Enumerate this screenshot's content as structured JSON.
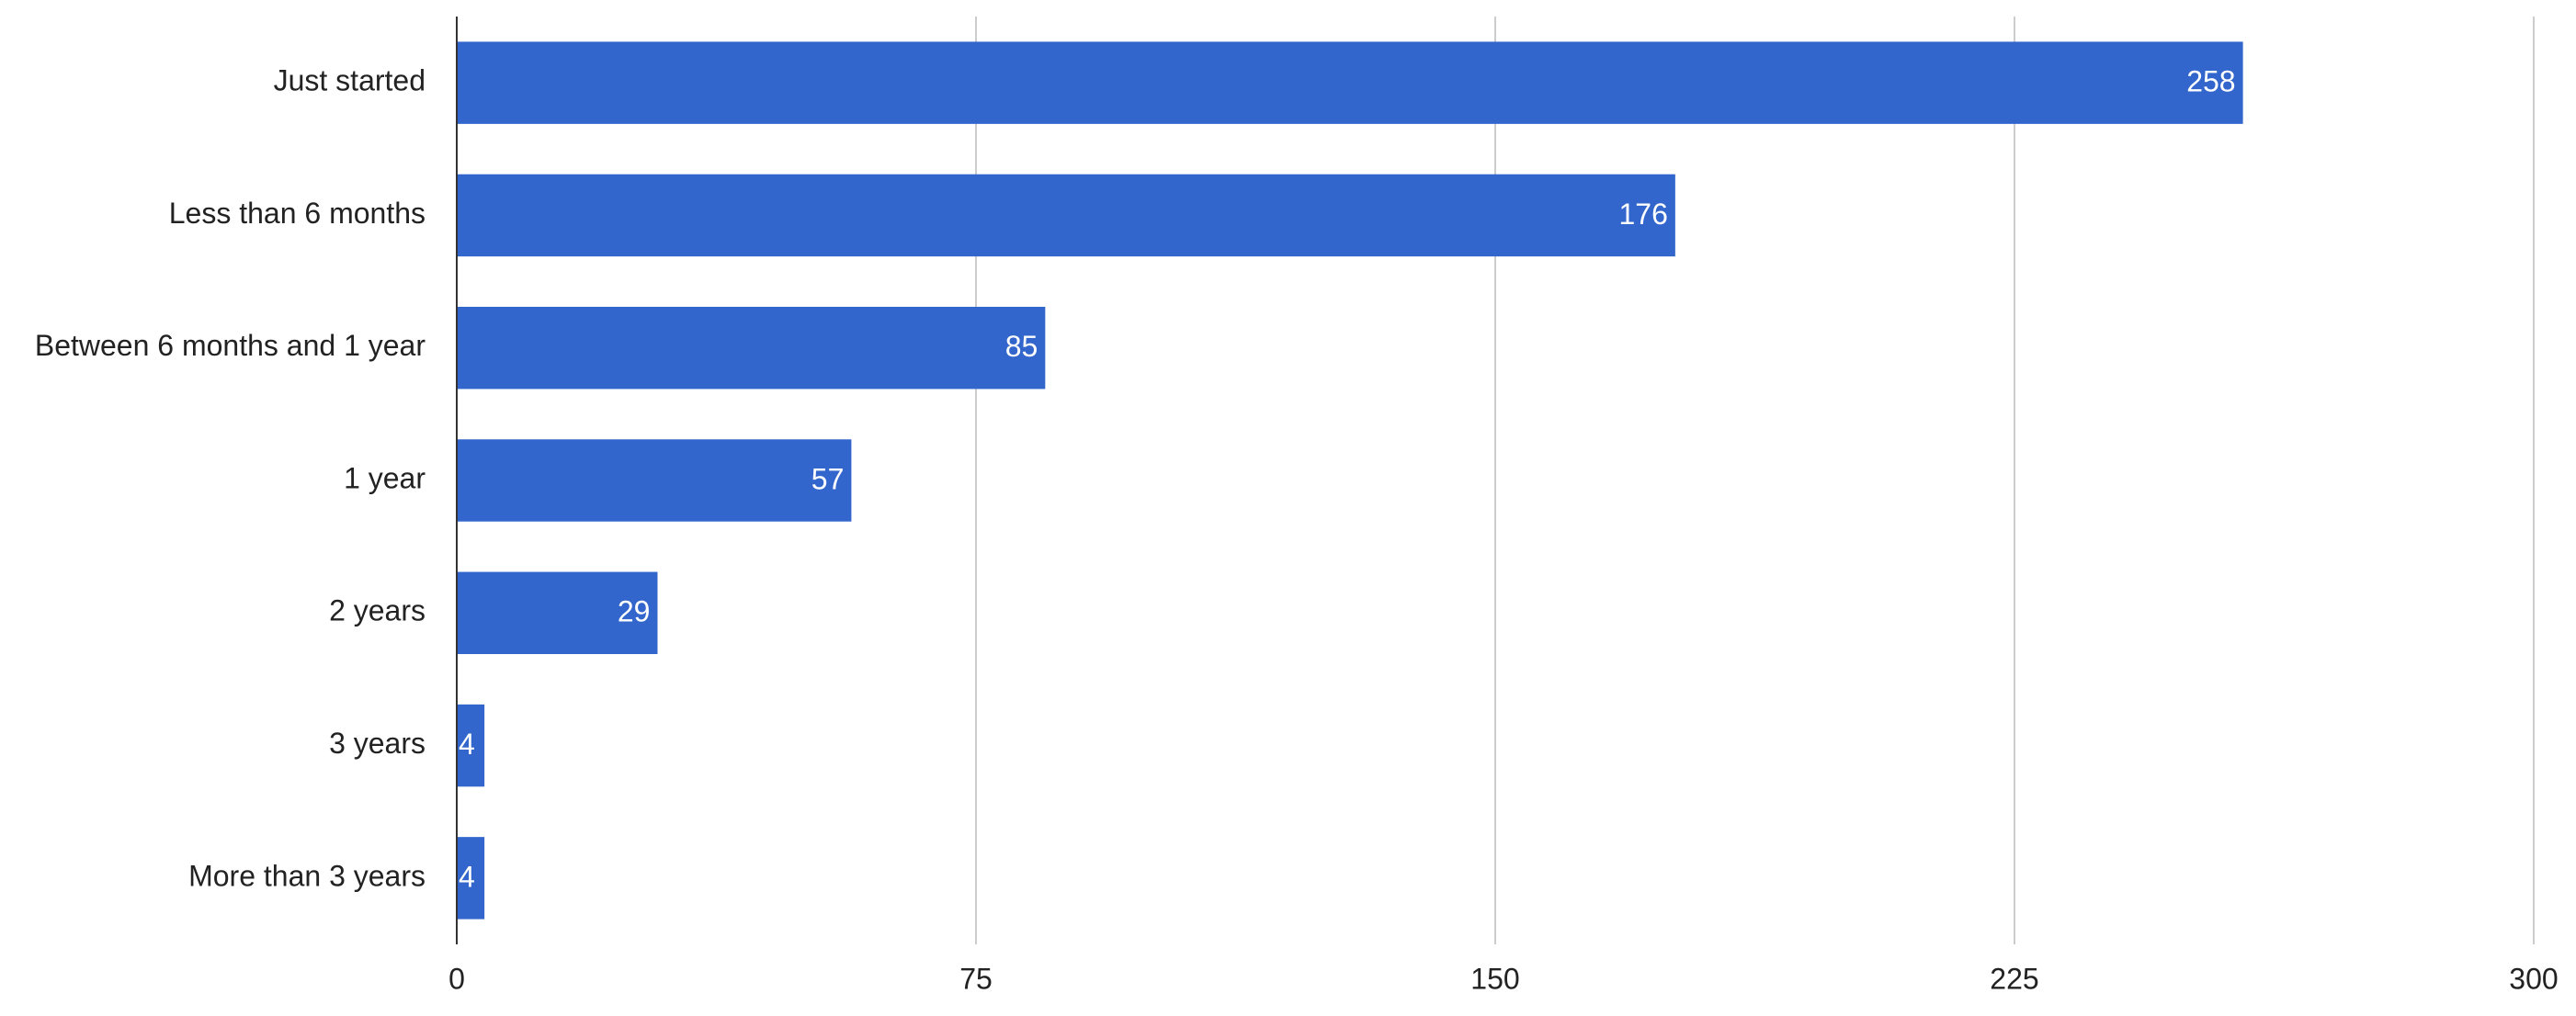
{
  "chart_data": {
    "type": "bar",
    "orientation": "horizontal",
    "categories": [
      "Just started",
      "Less than 6 months",
      "Between 6 months and 1 year",
      "1 year",
      "2 years",
      "3 years",
      "More than 3 years"
    ],
    "values": [
      258,
      176,
      85,
      57,
      29,
      4,
      4
    ],
    "color": "#3366cc",
    "xlim": [
      0,
      300
    ],
    "xticks": [
      0,
      75,
      150,
      225,
      300
    ],
    "grid": true
  }
}
